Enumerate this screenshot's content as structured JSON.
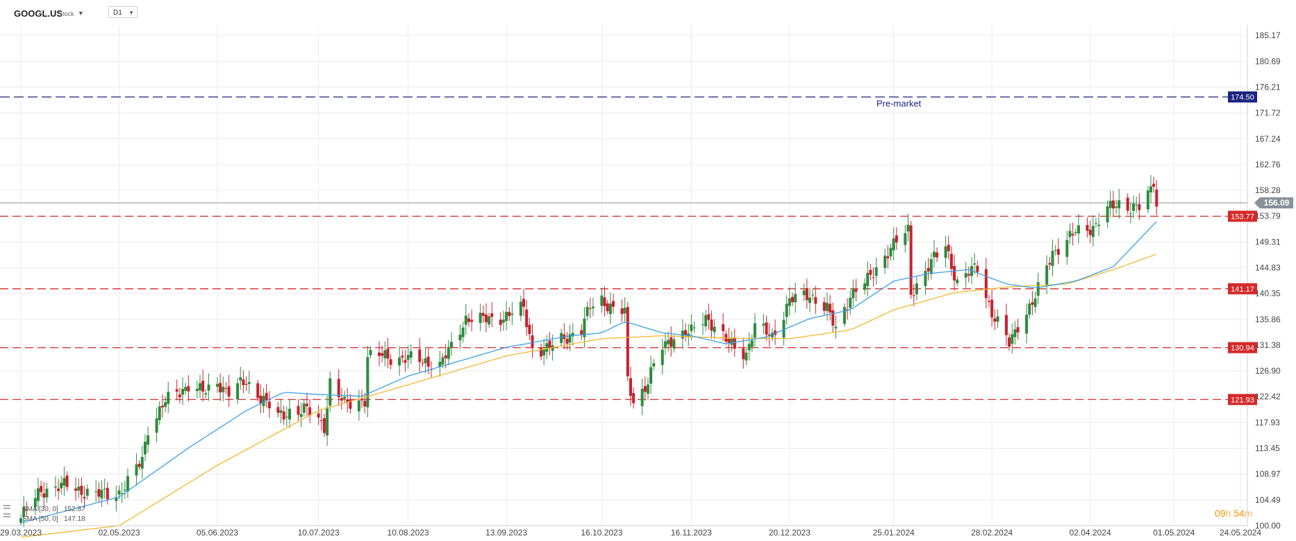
{
  "header": {
    "symbol": "GOOGL.US",
    "symbol_type": "Stock",
    "timeframe": "D1"
  },
  "timer": {
    "hours": "09",
    "h_unit": "h",
    "minutes": "54",
    "m_unit": "m"
  },
  "colors": {
    "up": "#2e8b3e",
    "down": "#c8202e",
    "sma30": "#3aa0e6",
    "sma50": "#f5b731",
    "level": "#d42a2a",
    "premarket": "#1a237e",
    "last": "#8a9199",
    "grid": "#ececec"
  },
  "chart_data": {
    "type": "candlestick",
    "symbol": "GOOGL.US",
    "timeframe": "D1",
    "ylim": [
      100.0,
      187.0
    ],
    "y_ticks": [
      "185.17",
      "180.69",
      "176.21",
      "171.72",
      "167.24",
      "162.76",
      "158.28",
      "153.79",
      "149.31",
      "144.83",
      "140.35",
      "135.86",
      "131.38",
      "126.90",
      "122.42",
      "117.93",
      "113.45",
      "108.97",
      "104.49",
      "100.00"
    ],
    "x_ticks": [
      "29.03.2023",
      "02.05.2023",
      "05.06.2023",
      "10.07.2023",
      "10.08.2023",
      "13.09.2023",
      "16.10.2023",
      "16.11.2023",
      "20.12.2023",
      "25.01.2024",
      "28.02.2024",
      "02.04.2024",
      "01.05.2024",
      "24.05.2024"
    ],
    "anchors": [
      [
        "29.03.2023",
        101.3
      ],
      [
        "05.04.2023",
        106.2
      ],
      [
        "14.04.2023",
        107.0
      ],
      [
        "24.04.2023",
        105.3
      ],
      [
        "02.05.2023",
        105.8
      ],
      [
        "05.05.2023",
        107.4
      ],
      [
        "10.05.2023",
        111.5
      ],
      [
        "12.05.2023",
        117.1
      ],
      [
        "18.05.2023",
        121.5
      ],
      [
        "23.05.2023",
        123.3
      ],
      [
        "26.05.2023",
        124.6
      ],
      [
        "01.06.2023",
        123.0
      ],
      [
        "05.06.2023",
        125.0
      ],
      [
        "09.06.2023",
        123.2
      ],
      [
        "15.06.2023",
        125.0
      ],
      [
        "21.06.2023",
        122.0
      ],
      [
        "26.06.2023",
        118.8
      ],
      [
        "30.06.2023",
        120.0
      ],
      [
        "06.07.2023",
        120.0
      ],
      [
        "12.07.2023",
        117.5
      ],
      [
        "14.07.2023",
        124.9
      ],
      [
        "19.07.2023",
        121.0
      ],
      [
        "26.07.2023",
        122.0
      ],
      [
        "27.07.2023",
        129.3
      ],
      [
        "01.08.2023",
        129.5
      ],
      [
        "10.08.2023",
        129.0
      ],
      [
        "16.08.2023",
        128.6
      ],
      [
        "21.08.2023",
        127.9
      ],
      [
        "25.08.2023",
        131.0
      ],
      [
        "30.08.2023",
        136.2
      ],
      [
        "05.09.2023",
        135.7
      ],
      [
        "13.09.2023",
        136.5
      ],
      [
        "19.09.2023",
        137.7
      ],
      [
        "22.09.2023",
        131.0
      ],
      [
        "27.09.2023",
        130.5
      ],
      [
        "03.10.2023",
        132.8
      ],
      [
        "09.10.2023",
        134.0
      ],
      [
        "12.10.2023",
        138.0
      ],
      [
        "16.10.2023",
        139.5
      ],
      [
        "20.10.2023",
        137.5
      ],
      [
        "24.10.2023",
        137.0
      ],
      [
        "25.10.2023",
        125.0
      ],
      [
        "27.10.2023",
        122.0
      ],
      [
        "31.10.2023",
        124.0
      ],
      [
        "06.11.2023",
        131.0
      ],
      [
        "10.11.2023",
        133.0
      ],
      [
        "16.11.2023",
        133.5
      ],
      [
        "21.11.2023",
        136.5
      ],
      [
        "28.11.2023",
        132.0
      ],
      [
        "05.12.2023",
        130.0
      ],
      [
        "08.12.2023",
        134.5
      ],
      [
        "14.12.2023",
        133.0
      ],
      [
        "20.12.2023",
        139.0
      ],
      [
        "27.12.2023",
        140.3
      ],
      [
        "02.01.2024",
        137.5
      ],
      [
        "05.01.2024",
        134.0
      ],
      [
        "10.01.2024",
        140.2
      ],
      [
        "16.01.2024",
        142.5
      ],
      [
        "23.01.2024",
        147.8
      ],
      [
        "30.01.2024",
        151.2
      ],
      [
        "31.01.2024",
        140.5
      ],
      [
        "06.02.2024",
        145.0
      ],
      [
        "12.02.2024",
        148.8
      ],
      [
        "16.02.2024",
        142.2
      ],
      [
        "23.02.2024",
        145.0
      ],
      [
        "28.02.2024",
        137.0
      ],
      [
        "05.03.2024",
        131.5
      ],
      [
        "08.03.2024",
        135.0
      ],
      [
        "14.03.2024",
        139.5
      ],
      [
        "20.03.2024",
        147.6
      ],
      [
        "28.03.2024",
        150.9
      ],
      [
        "03.04.2024",
        152.0
      ],
      [
        "08.04.2024",
        154.8
      ],
      [
        "12.04.2024",
        156.0
      ],
      [
        "16.04.2024",
        155.5
      ],
      [
        "19.04.2024",
        155.2
      ],
      [
        "23.04.2024",
        158.0
      ],
      [
        "24.04.2024",
        159.8
      ],
      [
        "25.04.2024",
        156.09
      ]
    ],
    "sma30": {
      "name": "SMA [30, 0]",
      "value": "152.87",
      "anchors": [
        [
          "29.03.2023",
          100.5
        ],
        [
          "02.05.2023",
          105.0
        ],
        [
          "26.05.2023",
          113.5
        ],
        [
          "15.06.2023",
          120.0
        ],
        [
          "28.06.2023",
          123.2
        ],
        [
          "10.07.2023",
          122.8
        ],
        [
          "25.07.2023",
          122.5
        ],
        [
          "10.08.2023",
          126.0
        ],
        [
          "13.09.2023",
          131.0
        ],
        [
          "05.10.2023",
          133.0
        ],
        [
          "16.10.2023",
          133.5
        ],
        [
          "24.10.2023",
          135.5
        ],
        [
          "06.11.2023",
          133.5
        ],
        [
          "16.11.2023",
          133.0
        ],
        [
          "28.11.2023",
          131.6
        ],
        [
          "12.12.2023",
          132.8
        ],
        [
          "27.12.2023",
          136.0
        ],
        [
          "10.01.2024",
          137.5
        ],
        [
          "25.01.2024",
          142.5
        ],
        [
          "06.02.2024",
          143.8
        ],
        [
          "20.02.2024",
          144.5
        ],
        [
          "04.03.2024",
          142.0
        ],
        [
          "14.03.2024",
          141.3
        ],
        [
          "28.03.2024",
          142.5
        ],
        [
          "10.04.2024",
          145.0
        ],
        [
          "25.04.2024",
          152.87
        ]
      ]
    },
    "sma50": {
      "name": "SMA [50, 0]",
      "value": "147.18",
      "anchors": [
        [
          "29.03.2023",
          98.0
        ],
        [
          "02.05.2023",
          100.0
        ],
        [
          "05.06.2023",
          110.5
        ],
        [
          "10.07.2023",
          120.0
        ],
        [
          "10.08.2023",
          124.5
        ],
        [
          "13.09.2023",
          129.5
        ],
        [
          "16.10.2023",
          132.5
        ],
        [
          "06.11.2023",
          133.0
        ],
        [
          "30.11.2023",
          132.6
        ],
        [
          "20.12.2023",
          132.5
        ],
        [
          "10.01.2024",
          134.0
        ],
        [
          "25.01.2024",
          137.5
        ],
        [
          "15.02.2024",
          140.5
        ],
        [
          "05.03.2024",
          141.5
        ],
        [
          "25.03.2024",
          142.0
        ],
        [
          "10.04.2024",
          144.5
        ],
        [
          "25.04.2024",
          147.18
        ]
      ]
    },
    "levels": [
      {
        "price": 153.77,
        "label": "153.77"
      },
      {
        "price": 141.17,
        "label": "141.17"
      },
      {
        "price": 130.94,
        "label": "130.94"
      },
      {
        "price": 121.93,
        "label": "121.93"
      }
    ],
    "premarket": {
      "price": 174.5,
      "label": "174.50",
      "text": "Pre-market"
    },
    "last_price": {
      "price": 156.09,
      "label": "156.09"
    },
    "legend": [
      {
        "name": "SMA [30, 0]",
        "value": "152.87"
      },
      {
        "name": "SMA [50, 0]",
        "value": "147.18"
      }
    ]
  }
}
